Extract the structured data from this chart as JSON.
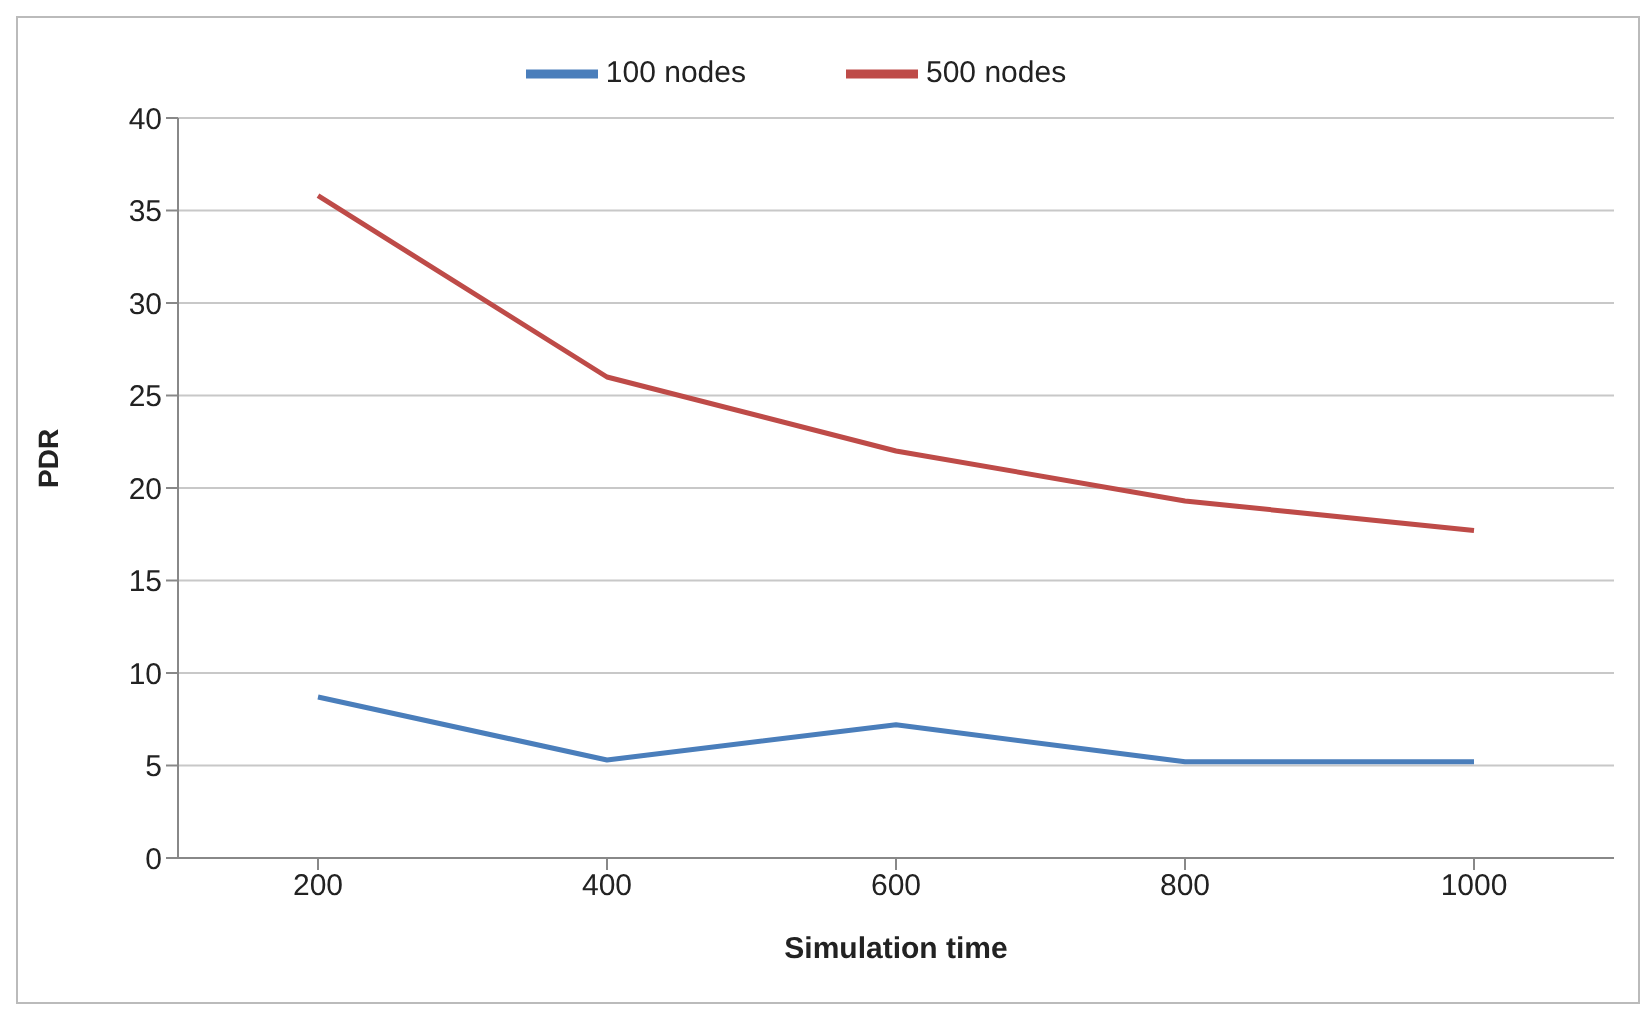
{
  "chart_data": {
    "type": "line",
    "xlabel": "Simulation time",
    "ylabel": "PDR",
    "categories": [
      "200",
      "400",
      "600",
      "800",
      "1000"
    ],
    "series": [
      {
        "name": "100 nodes",
        "color": "#4a7ebb",
        "values": [
          8.7,
          5.3,
          7.2,
          5.2,
          5.2
        ]
      },
      {
        "name": "500 nodes",
        "color": "#be4b48",
        "values": [
          35.8,
          26,
          22,
          19.3,
          17.7
        ]
      }
    ],
    "ylim": [
      0,
      40
    ],
    "yticks": [
      0,
      5,
      10,
      15,
      20,
      25,
      30,
      35,
      40
    ],
    "grid": "y",
    "legend": "top",
    "marker": "none",
    "line_style": "solid"
  }
}
